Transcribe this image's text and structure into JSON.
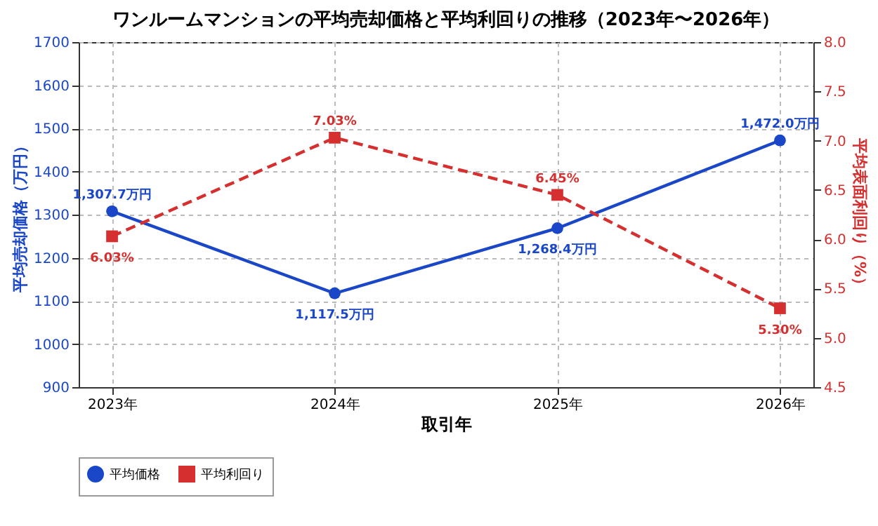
{
  "chart_data": {
    "type": "line",
    "title": "ワンルームマンションの平均売却価格と平均利回りの推移（2023年〜2026年）",
    "xlabel": "取引年",
    "ylabel": "平均売却価格（万円）",
    "y2label": "平均表面利回り（%）",
    "categories": [
      "2023年",
      "2024年",
      "2025年",
      "2026年"
    ],
    "series": [
      {
        "name": "平均価格",
        "color": "#1a47c8",
        "marker": "circle",
        "line_style": "solid",
        "values": [
          1307.7,
          1117.5,
          1268.4,
          1472.0
        ],
        "value_labels": [
          "1,307.7万円",
          "1,117.5万円",
          "1,268.4万円",
          "1,472.0万円"
        ]
      },
      {
        "name": "平均利回り",
        "color": "#d62f2f",
        "marker": "square",
        "line_style": "dashed",
        "axis": "y2",
        "values": [
          6.03,
          7.03,
          6.45,
          5.3
        ],
        "value_labels": [
          "6.03%",
          "7.03%",
          "6.45%",
          "5.30%"
        ]
      }
    ],
    "ylim": [
      900,
      1700
    ],
    "yticks": [
      900,
      1000,
      1100,
      1200,
      1300,
      1400,
      1500,
      1600,
      1700
    ],
    "y2lim": [
      4.5,
      8.0
    ],
    "y2ticks": [
      4.5,
      {
        "value": 5,
        "label": "5.0"
      },
      5.5,
      {
        "value": 6,
        "label": "6.0"
      },
      6.5,
      {
        "value": 7,
        "label": "7.0"
      },
      7.5,
      {
        "value": 8,
        "label": "8.0"
      }
    ],
    "grid": true,
    "legend": "bottom"
  }
}
